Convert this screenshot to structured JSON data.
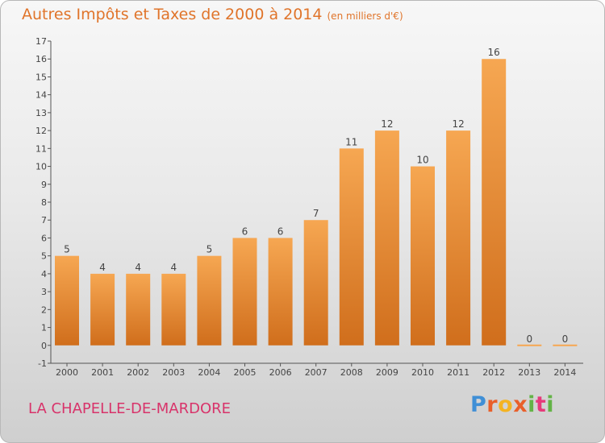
{
  "header": {
    "title": "Autres Impôts et Taxes de 2000 à 2014",
    "unit": "(en milliers d'€)"
  },
  "footer": {
    "commune": "LA CHAPELLE-DE-MARDORE",
    "logo": "Proxiti"
  },
  "colors": {
    "bar_top": "#f6a752",
    "bar_bottom": "#d06e1c",
    "title": "#e0742a",
    "commune": "#d8336a"
  },
  "chart_data": {
    "type": "bar",
    "title": "Autres Impôts et Taxes de 2000 à 2014",
    "subtitle": "(en milliers d'€)",
    "categories": [
      "2000",
      "2001",
      "2002",
      "2003",
      "2004",
      "2005",
      "2006",
      "2007",
      "2008",
      "2009",
      "2010",
      "2011",
      "2012",
      "2013",
      "2014"
    ],
    "values": [
      5,
      4,
      4,
      4,
      5,
      6,
      6,
      7,
      11,
      12,
      10,
      12,
      16,
      0,
      0
    ],
    "ylim": [
      -1,
      17
    ],
    "yticks": [
      -1,
      0,
      1,
      2,
      3,
      4,
      5,
      6,
      7,
      8,
      9,
      10,
      11,
      12,
      13,
      14,
      15,
      16,
      17
    ],
    "grid": false,
    "data_labels": true
  }
}
